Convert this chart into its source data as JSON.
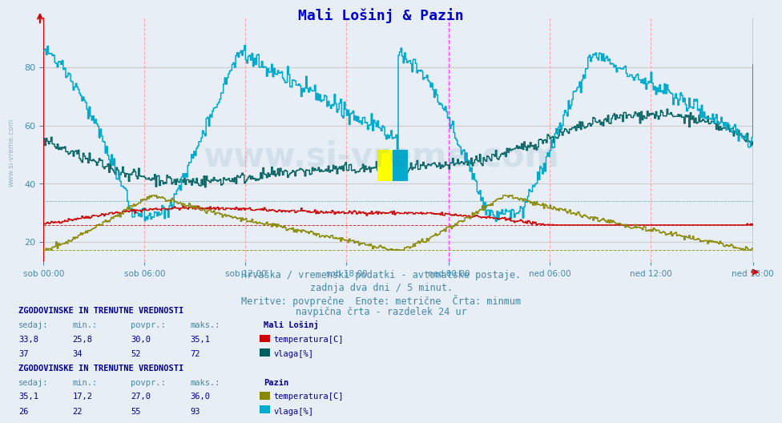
{
  "title": "Mali Lošinj & Pazin",
  "bg_color": "#e8eef5",
  "plot_bg_color": "#e8eef5",
  "ylim": [
    13,
    97
  ],
  "yticks": [
    20,
    40,
    60,
    80
  ],
  "xlabel_ticks": [
    "sob 00:00",
    "sob 06:00",
    "sob 12:00",
    "sob 18:00",
    "ned 00:00",
    "ned 06:00",
    "ned 12:00",
    "ned 18:00"
  ],
  "n_points": 577,
  "title_color": "#0000cc",
  "title_fontsize": 13,
  "axis_color": "#4488aa",
  "tick_color": "#4488aa",
  "grid_h_color": "#cccccc",
  "grid_v_color": "#ffaaaa",
  "grid_v_mid_color": "#ff44ff",
  "watermark_side": "www.si-vreme.com",
  "watermark_center": "www.si-vreme.com",
  "subtitle_lines": [
    "Hrvaška / vremenski podatki - avtomatske postaje.",
    "zadnja dva dni / 5 minut.",
    "Meritve: povprečne  Enote: metrične  Črta: minmum",
    "navpična črta - razdelek 24 ur"
  ],
  "subtitle_color": "#4488aa",
  "subtitle_fontsize": 9,
  "legend_title_color": "#000088",
  "legend_color": "#4488aa",
  "stat_color": "#000088",
  "line_colors": {
    "mali_temp": "#cc0000",
    "mali_hum": "#005f5f",
    "pazin_temp": "#888800",
    "pazin_hum": "#00aacc"
  },
  "mali_min_temp": 25.8,
  "mali_min_hum": 34.0,
  "pazin_min_temp": 17.2,
  "pazin_min_hum": 22.0,
  "legend_entries_mali": {
    "sedaj": "33,8",
    "min": "25,8",
    "povpr": "30,0",
    "maks": "35,1",
    "temp_color": "#cc0000",
    "hum_color": "#005f5f",
    "temp_label": "temperatura[C]",
    "hum_label": "vlaga[%]",
    "hum_sedaj": "37",
    "hum_min": "34",
    "hum_povpr": "52",
    "hum_maks": "72",
    "name": "Mali Lošinj"
  },
  "legend_entries_pazin": {
    "sedaj": "35,1",
    "min": "17,2",
    "povpr": "27,0",
    "maks": "36,0",
    "temp_color": "#888800",
    "hum_color": "#00aacc",
    "temp_label": "temperatura[C]",
    "hum_label": "vlaga[%]",
    "hum_sedaj": "26",
    "hum_min": "22",
    "hum_povpr": "55",
    "hum_maks": "93",
    "name": "Pazin"
  }
}
